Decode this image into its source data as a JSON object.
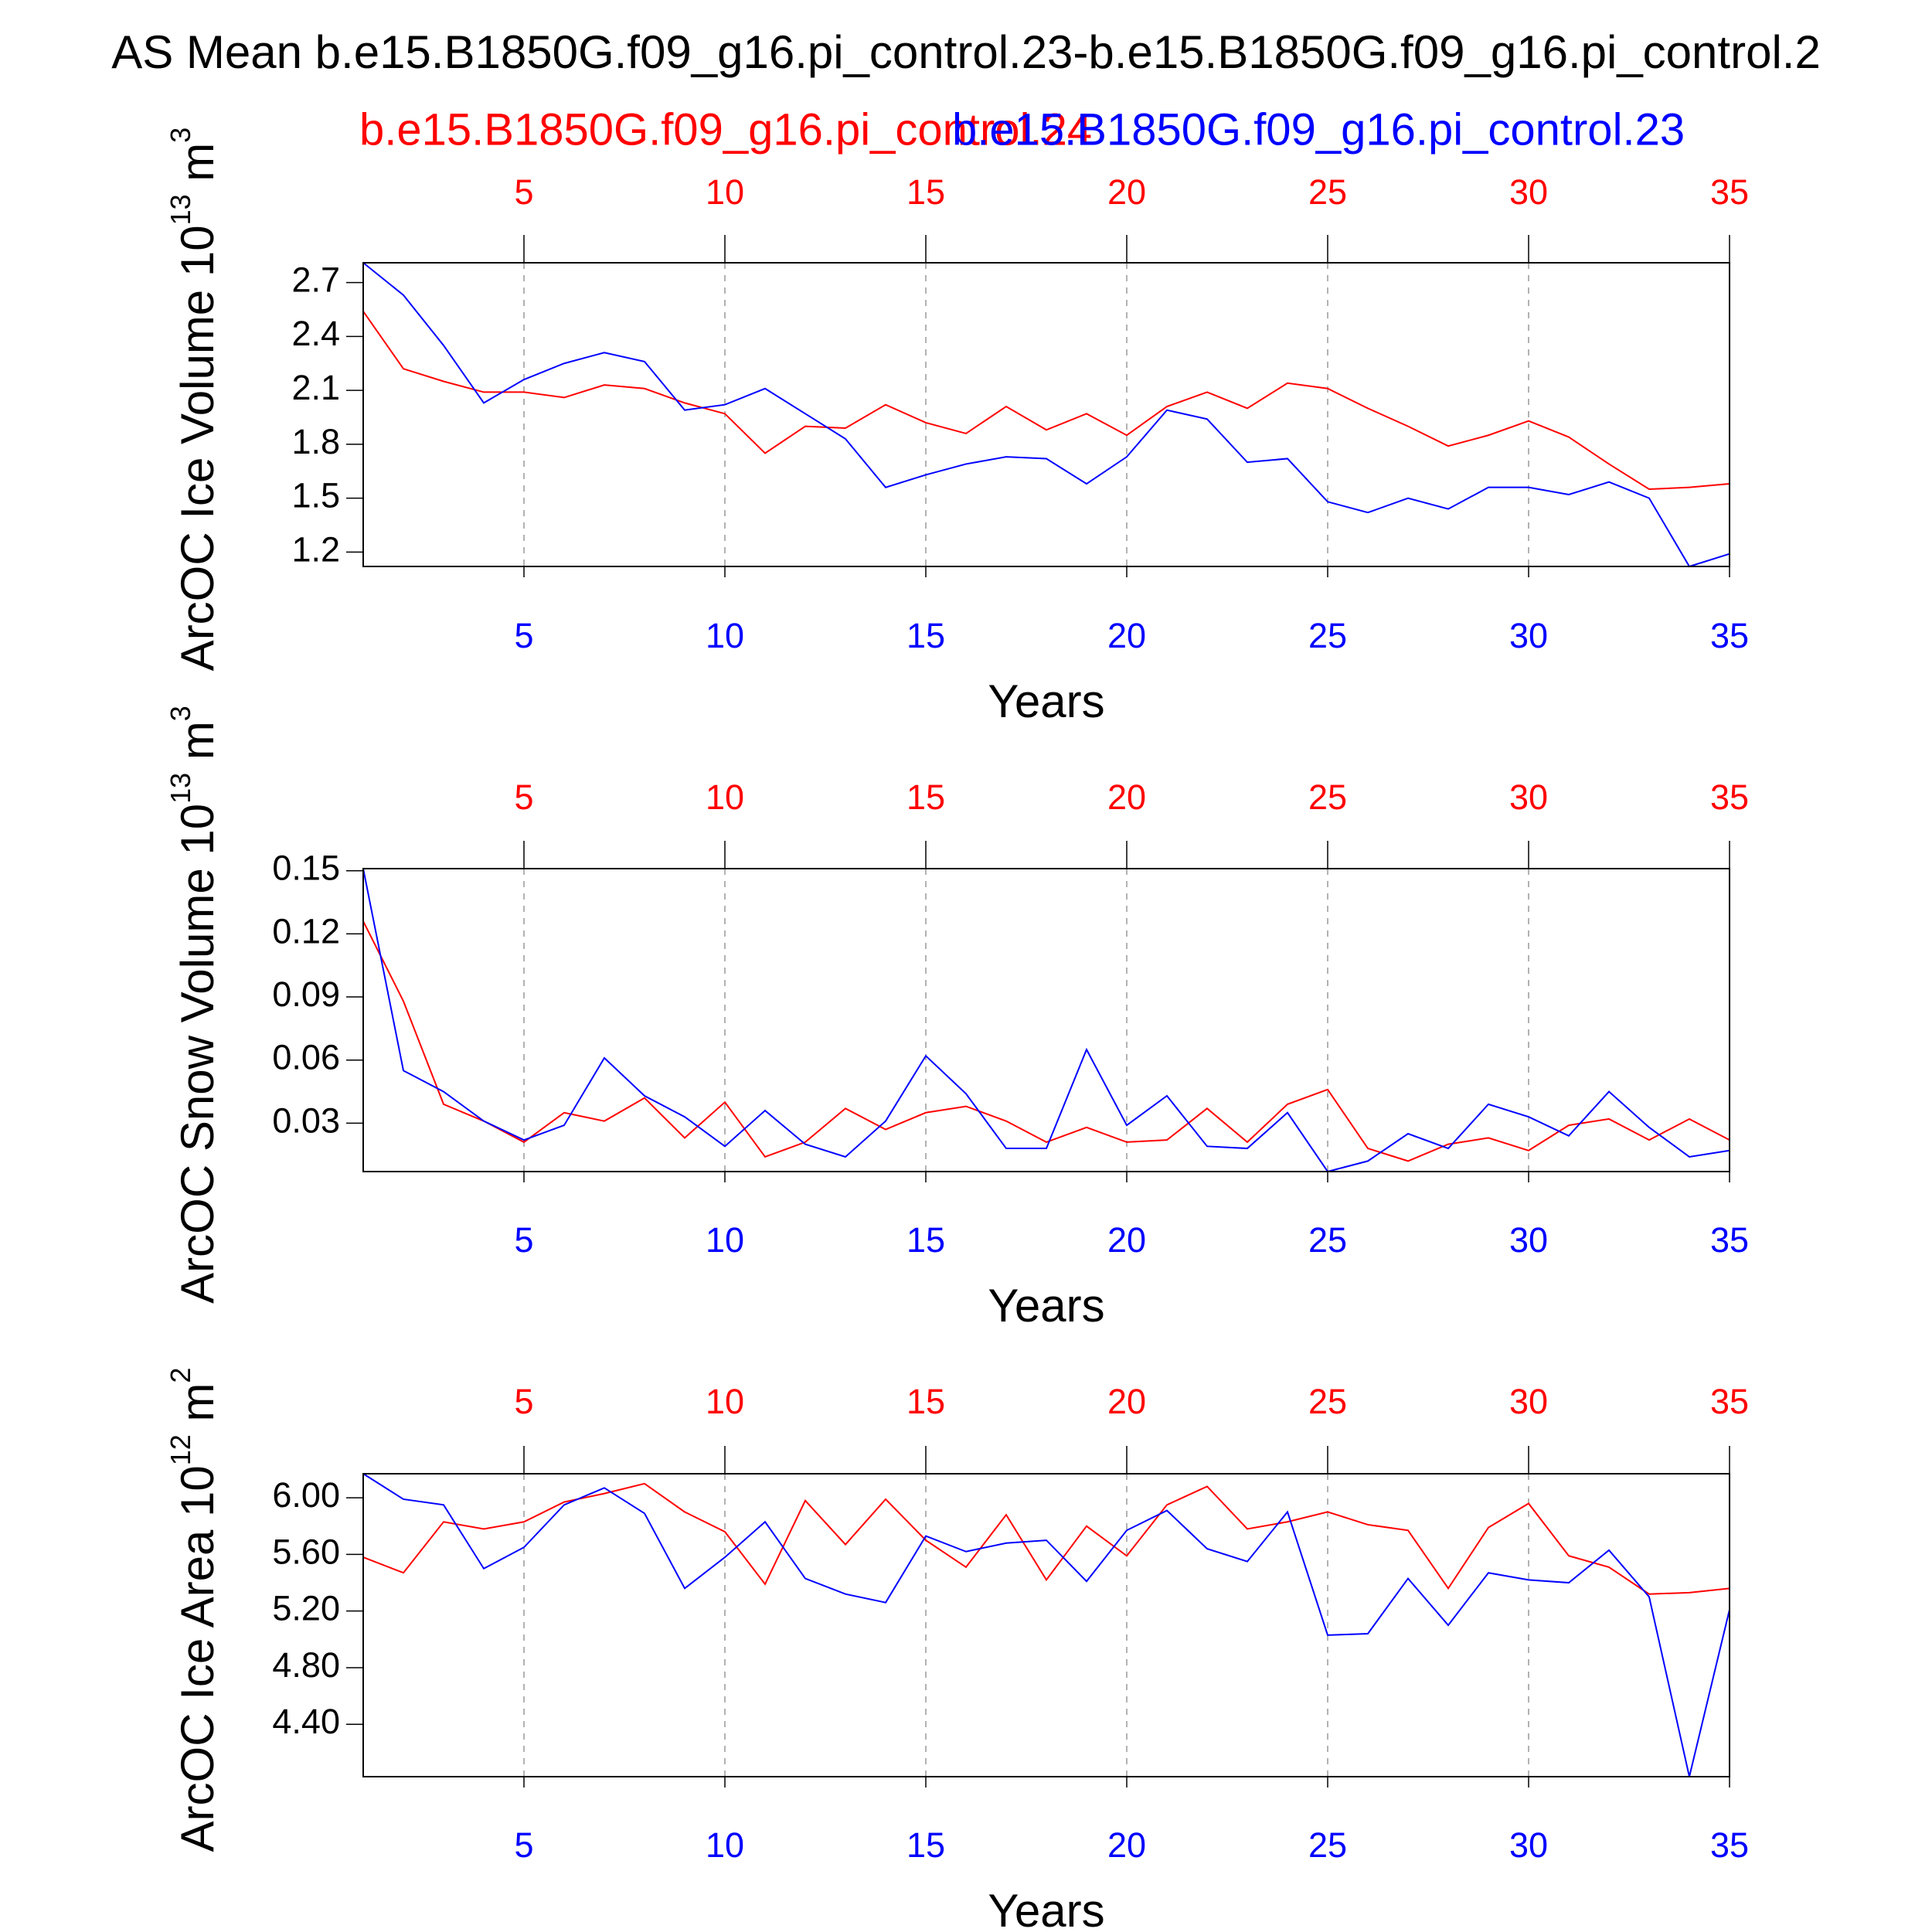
{
  "title": "AS Mean b.e15.B1850G.f09_g16.pi_control.23-b.e15.B1850G.f09_g16.pi_control.2",
  "chart_data": [
    {
      "type": "line",
      "ylabel": [
        "ArcOC Ice Volume 10",
        "13",
        " m",
        "3"
      ],
      "xlabel": "Years",
      "x": [
        1,
        2,
        3,
        4,
        5,
        6,
        7,
        8,
        9,
        10,
        11,
        12,
        13,
        14,
        15,
        16,
        17,
        18,
        19,
        20,
        21,
        22,
        23,
        24,
        25,
        26,
        27,
        28,
        29,
        30,
        31,
        32,
        33,
        34,
        35
      ],
      "xlim": [
        1,
        35
      ],
      "xticks": [
        5,
        10,
        15,
        20,
        25,
        30,
        35
      ],
      "x2ticks": [
        5,
        10,
        15,
        20,
        25,
        30,
        35
      ],
      "xtick_color": "#0000ff",
      "x2tick_color": "#ff0000",
      "grid": true,
      "ylim": [
        1.12,
        2.81
      ],
      "yticks": [
        1.2,
        1.5,
        1.8,
        2.1,
        2.4,
        2.7
      ],
      "series": [
        {
          "name": "b.e15.B1850G.f09_g16.pi_control.24",
          "color": "#ff0000",
          "values": [
            2.54,
            2.22,
            2.15,
            2.09,
            2.09,
            2.06,
            2.13,
            2.11,
            2.03,
            1.97,
            1.75,
            1.9,
            1.89,
            2.02,
            1.92,
            1.86,
            2.01,
            1.88,
            1.97,
            1.85,
            2.01,
            2.09,
            2.0,
            2.14,
            2.11,
            2.0,
            1.9,
            1.79,
            1.85,
            1.93,
            1.84,
            1.69,
            1.55,
            1.56,
            1.58
          ]
        },
        {
          "name": "b.e15.B1850G.f09_g16.pi_control.23",
          "color": "#0000ff",
          "values": [
            2.81,
            2.63,
            2.35,
            2.03,
            2.16,
            2.25,
            2.31,
            2.26,
            1.99,
            2.02,
            2.11,
            1.97,
            1.83,
            1.56,
            1.63,
            1.69,
            1.73,
            1.72,
            1.58,
            1.73,
            1.99,
            1.94,
            1.7,
            1.72,
            1.48,
            1.42,
            1.5,
            1.44,
            1.56,
            1.56,
            1.52,
            1.59,
            1.5,
            1.12,
            1.19
          ]
        }
      ]
    },
    {
      "type": "line",
      "ylabel": [
        "ArcOC Snow Volume 10",
        "13",
        " m",
        "3"
      ],
      "xlabel": "Years",
      "x": [
        1,
        2,
        3,
        4,
        5,
        6,
        7,
        8,
        9,
        10,
        11,
        12,
        13,
        14,
        15,
        16,
        17,
        18,
        19,
        20,
        21,
        22,
        23,
        24,
        25,
        26,
        27,
        28,
        29,
        30,
        31,
        32,
        33,
        34,
        35
      ],
      "xlim": [
        1,
        35
      ],
      "xticks": [
        5,
        10,
        15,
        20,
        25,
        30,
        35
      ],
      "x2ticks": [
        5,
        10,
        15,
        20,
        25,
        30,
        35
      ],
      "xtick_color": "#0000ff",
      "x2tick_color": "#ff0000",
      "grid": true,
      "ylim": [
        0.007,
        0.151
      ],
      "yticks": [
        0.03,
        0.06,
        0.09,
        0.12,
        0.15
      ],
      "series": [
        {
          "color": "#ff0000",
          "values": [
            0.126,
            0.088,
            0.039,
            0.031,
            0.021,
            0.035,
            0.031,
            0.042,
            0.023,
            0.04,
            0.014,
            0.021,
            0.037,
            0.027,
            0.035,
            0.038,
            0.031,
            0.021,
            0.028,
            0.021,
            0.022,
            0.037,
            0.021,
            0.039,
            0.046,
            0.018,
            0.012,
            0.02,
            0.023,
            0.017,
            0.029,
            0.032,
            0.022,
            0.032,
            0.022
          ]
        },
        {
          "color": "#0000ff",
          "values": [
            0.151,
            0.055,
            0.045,
            0.031,
            0.022,
            0.029,
            0.061,
            0.043,
            0.033,
            0.019,
            0.036,
            0.02,
            0.014,
            0.031,
            0.062,
            0.044,
            0.018,
            0.018,
            0.065,
            0.029,
            0.043,
            0.019,
            0.018,
            0.035,
            0.007,
            0.012,
            0.025,
            0.018,
            0.039,
            0.033,
            0.024,
            0.045,
            0.028,
            0.014,
            0.017
          ]
        }
      ]
    },
    {
      "type": "line",
      "ylabel": [
        "ArcOC Ice Area 10",
        "12",
        " m",
        "2"
      ],
      "xlabel": "Years",
      "x": [
        1,
        2,
        3,
        4,
        5,
        6,
        7,
        8,
        9,
        10,
        11,
        12,
        13,
        14,
        15,
        16,
        17,
        18,
        19,
        20,
        21,
        22,
        23,
        24,
        25,
        26,
        27,
        28,
        29,
        30,
        31,
        32,
        33,
        34,
        35
      ],
      "xlim": [
        1,
        35
      ],
      "xticks": [
        5,
        10,
        15,
        20,
        25,
        30,
        35
      ],
      "x2ticks": [
        5,
        10,
        15,
        20,
        25,
        30,
        35
      ],
      "xtick_color": "#0000ff",
      "x2tick_color": "#ff0000",
      "grid": true,
      "ylim": [
        4.03,
        6.17
      ],
      "yticks": [
        {
          "value": 4.4,
          "label": "4.40"
        },
        {
          "value": 4.8,
          "label": "4.80"
        },
        {
          "value": 5.2,
          "label": "5.20"
        },
        {
          "value": 5.6,
          "label": "5.60"
        },
        {
          "value": 6,
          "label": "6.00"
        }
      ],
      "series": [
        {
          "color": "#ff0000",
          "values": [
            5.58,
            5.47,
            5.83,
            5.78,
            5.83,
            5.97,
            6.03,
            6.1,
            5.9,
            5.76,
            5.39,
            5.98,
            5.67,
            5.99,
            5.7,
            5.51,
            5.88,
            5.42,
            5.8,
            5.59,
            5.95,
            6.08,
            5.78,
            5.83,
            5.9,
            5.81,
            5.77,
            5.36,
            5.79,
            5.96,
            5.59,
            5.51,
            5.32,
            5.33,
            5.36
          ]
        },
        {
          "color": "#0000ff",
          "values": [
            6.17,
            5.99,
            5.95,
            5.5,
            5.65,
            5.95,
            6.07,
            5.89,
            5.36,
            5.58,
            5.83,
            5.43,
            5.32,
            5.26,
            5.73,
            5.62,
            5.68,
            5.7,
            5.41,
            5.77,
            5.91,
            5.64,
            5.55,
            5.9,
            5.03,
            5.04,
            5.43,
            5.1,
            5.47,
            5.42,
            5.4,
            5.63,
            5.3,
            4.03,
            5.21
          ]
        }
      ]
    }
  ]
}
